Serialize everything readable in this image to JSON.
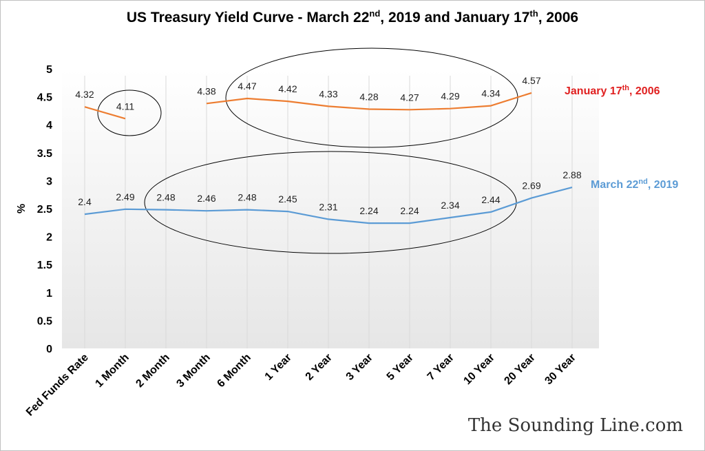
{
  "chart_data": {
    "type": "line",
    "title": {
      "part1": "US Treasury Yield Curve - March 22",
      "sup1": "nd",
      "part2": ", 2019 and January 17",
      "sup2": "th",
      "part3": ", 2006"
    },
    "ylabel": "%",
    "ylim": [
      0,
      5
    ],
    "yticks": [
      "0",
      "0.5",
      "1",
      "1.5",
      "2",
      "2.5",
      "3",
      "3.5",
      "4",
      "4.5",
      "5"
    ],
    "categories": [
      "Fed Funds Rate",
      "1 Month",
      "2 Month",
      "3 Month",
      "6 Month",
      "1 Year",
      "2 Year",
      "3 Year",
      "5 Year",
      "7 Year",
      "10 Year",
      "20 Year",
      "30 Year"
    ],
    "series": [
      {
        "name": "January 17th, 2006",
        "name_parts": [
          "January 17",
          "th",
          ", 2006"
        ],
        "color": "#ed7d31",
        "label_color": "#e02020",
        "values": [
          4.32,
          4.11,
          null,
          4.38,
          4.47,
          4.42,
          4.33,
          4.28,
          4.27,
          4.29,
          4.34,
          4.57,
          null
        ],
        "labels": [
          "4.32",
          "4.11",
          "",
          "4.38",
          "4.47",
          "4.42",
          "4.33",
          "4.28",
          "4.27",
          "4.29",
          "4.34",
          "4.57",
          ""
        ]
      },
      {
        "name": "March 22nd, 2019",
        "name_parts": [
          "March 22",
          "nd",
          ", 2019"
        ],
        "color": "#5b9bd5",
        "label_color": "#5b9bd5",
        "values": [
          2.4,
          2.49,
          2.48,
          2.46,
          2.48,
          2.45,
          2.31,
          2.24,
          2.24,
          2.34,
          2.44,
          2.69,
          2.88
        ],
        "labels": [
          "2.4",
          "2.49",
          "2.48",
          "2.46",
          "2.48",
          "2.45",
          "2.31",
          "2.24",
          "2.24",
          "2.34",
          "2.44",
          "2.69",
          "2.88"
        ]
      }
    ],
    "grid": "vertical",
    "legend": "right, inline at line ends",
    "annotations": [
      "ellipse around 2006 short end",
      "ellipse around 2006 3 Month to 20 Year",
      "ellipse around 2019 2 Month to 10 Year"
    ]
  },
  "watermark": "The Sounding Line.com"
}
